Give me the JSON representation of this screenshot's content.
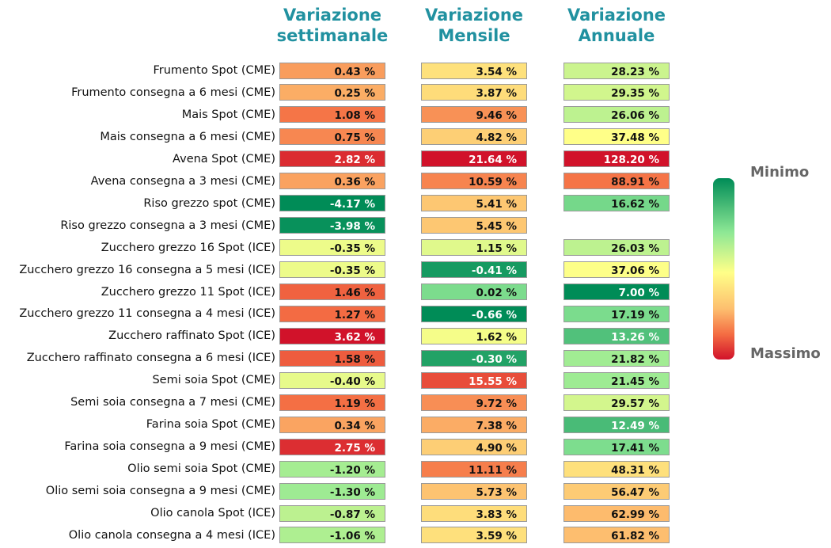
{
  "chart_data": {
    "type": "heatmap",
    "columns": [
      "Variazione\nsettimanale",
      "Variazione\nMensile",
      "Variazione\nAnnuale"
    ],
    "rows": [
      "Frumento Spot (CME)",
      "Frumento consegna a 6 mesi (CME)",
      "Mais Spot (CME)",
      "Mais consegna a 6 mesi (CME)",
      "Avena Spot (CME)",
      "Avena consegna a 3 mesi (CME)",
      "Riso grezzo spot (CME)",
      "Riso grezzo consegna a 3 mesi (CME)",
      "Zucchero grezzo 16 Spot (ICE)",
      "Zucchero grezzo 16 consegna a 5 mesi (ICE)",
      "Zucchero grezzo 11 Spot (ICE)",
      "Zucchero grezzo 11 consegna a 4 mesi (ICE)",
      "Zucchero raffinato Spot (ICE)",
      "Zucchero raffinato consegna a 6 mesi (ICE)",
      "Semi soia Spot (CME)",
      "Semi soia consegna a 7 mesi (CME)",
      "Farina soia Spot (CME)",
      "Farina soia consegna a 9 mesi (CME)",
      "Olio semi soia Spot (CME)",
      "Olio semi soia consegna a 9 mesi (CME)",
      "Olio canola Spot (ICE)",
      "Olio canola consegna a 4 mesi (ICE)"
    ],
    "values": [
      [
        0.43,
        3.54,
        28.23
      ],
      [
        0.25,
        3.87,
        29.35
      ],
      [
        1.08,
        9.46,
        26.06
      ],
      [
        0.75,
        4.82,
        37.48
      ],
      [
        2.82,
        21.64,
        128.2
      ],
      [
        0.36,
        10.59,
        88.91
      ],
      [
        -4.17,
        5.41,
        16.62
      ],
      [
        -3.98,
        5.45,
        null
      ],
      [
        -0.35,
        1.15,
        26.03
      ],
      [
        -0.35,
        -0.41,
        37.06
      ],
      [
        1.46,
        0.02,
        7.0
      ],
      [
        1.27,
        -0.66,
        17.19
      ],
      [
        3.62,
        1.62,
        13.26
      ],
      [
        1.58,
        -0.3,
        21.82
      ],
      [
        -0.4,
        15.55,
        21.45
      ],
      [
        1.19,
        9.72,
        29.57
      ],
      [
        0.34,
        7.38,
        12.49
      ],
      [
        2.75,
        4.9,
        17.41
      ],
      [
        -1.2,
        11.11,
        48.31
      ],
      [
        -1.3,
        5.73,
        56.47
      ],
      [
        -0.87,
        3.83,
        62.99
      ],
      [
        -1.06,
        3.59,
        61.82
      ]
    ],
    "unit_suffix": " %",
    "color_scale": [
      "#008c57",
      "#8ee895",
      "#ffff88",
      "#fdbf6f",
      "#f46d43",
      "#d1122a"
    ],
    "legend": {
      "min_label": "Minimo",
      "max_label": "Massimo"
    }
  }
}
